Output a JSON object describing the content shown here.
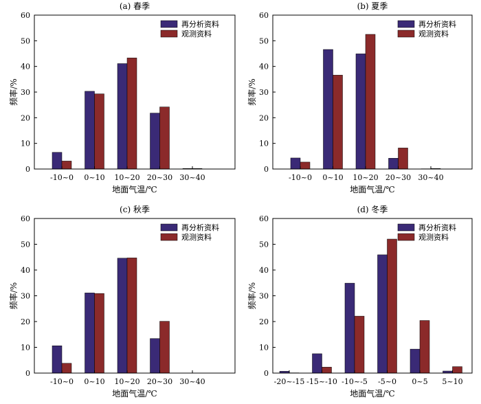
{
  "colors": {
    "reanalysis": "#3a2a76",
    "observation": "#8b2a2a",
    "axis": "#000000"
  },
  "legend": [
    "再分析资料",
    "观测资料"
  ],
  "chart_data": [
    {
      "type": "bar",
      "title": "(a) 春季",
      "xlabel": "地面气温/℃",
      "ylabel": "频率/%",
      "ylim": [
        0,
        60
      ],
      "yticks": [
        0,
        10,
        20,
        30,
        40,
        50,
        60
      ],
      "categories": [
        "-10~0",
        "0~10",
        "10~20",
        "20~30",
        "30~40"
      ],
      "series": [
        {
          "name": "再分析资料",
          "values": [
            6.5,
            30.3,
            41.1,
            21.8,
            0.2
          ]
        },
        {
          "name": "观测资料",
          "values": [
            3.1,
            29.3,
            43.3,
            24.2,
            0.2
          ]
        }
      ],
      "legend_position": "top-right"
    },
    {
      "type": "bar",
      "title": "(b) 夏季",
      "xlabel": "地面气温/℃",
      "ylabel": "频率/%",
      "ylim": [
        0,
        60
      ],
      "yticks": [
        0,
        10,
        20,
        30,
        40,
        50,
        60
      ],
      "categories": [
        "-10~0",
        "0~10",
        "10~20",
        "20~30",
        "30~40"
      ],
      "series": [
        {
          "name": "再分析资料",
          "values": [
            4.3,
            46.6,
            44.9,
            4.2,
            0.1
          ]
        },
        {
          "name": "观测资料",
          "values": [
            2.7,
            36.6,
            52.5,
            8.2,
            0.2
          ]
        }
      ],
      "legend_position": "top-right"
    },
    {
      "type": "bar",
      "title": "(c) 秋季",
      "xlabel": "地面气温/℃",
      "ylabel": "频率/%",
      "ylim": [
        0,
        60
      ],
      "yticks": [
        0,
        10,
        20,
        30,
        40,
        50,
        60
      ],
      "categories": [
        "-10~0",
        "0~10",
        "10~20",
        "20~30",
        "30~40"
      ],
      "series": [
        {
          "name": "再分析资料",
          "values": [
            10.6,
            31.1,
            44.6,
            13.4,
            0
          ]
        },
        {
          "name": "观测资料",
          "values": [
            3.8,
            30.9,
            44.7,
            20.1,
            0
          ]
        }
      ],
      "legend_position": "top-right"
    },
    {
      "type": "bar",
      "title": "(d) 冬季",
      "xlabel": "地面气温/℃",
      "ylabel": "频率/%",
      "ylim": [
        0,
        60
      ],
      "yticks": [
        0,
        10,
        20,
        30,
        40,
        50,
        60
      ],
      "categories": [
        "-20~-15",
        "-15~-10",
        "-10~-5",
        "-5~0",
        "0~5",
        "5~10"
      ],
      "series": [
        {
          "name": "再分析资料",
          "values": [
            0.7,
            7.5,
            34.9,
            45.9,
            9.3,
            0.8
          ]
        },
        {
          "name": "观测资料",
          "values": [
            0.1,
            2.3,
            22.1,
            52.0,
            20.4,
            2.5
          ]
        }
      ],
      "legend_position": "top-right"
    }
  ]
}
